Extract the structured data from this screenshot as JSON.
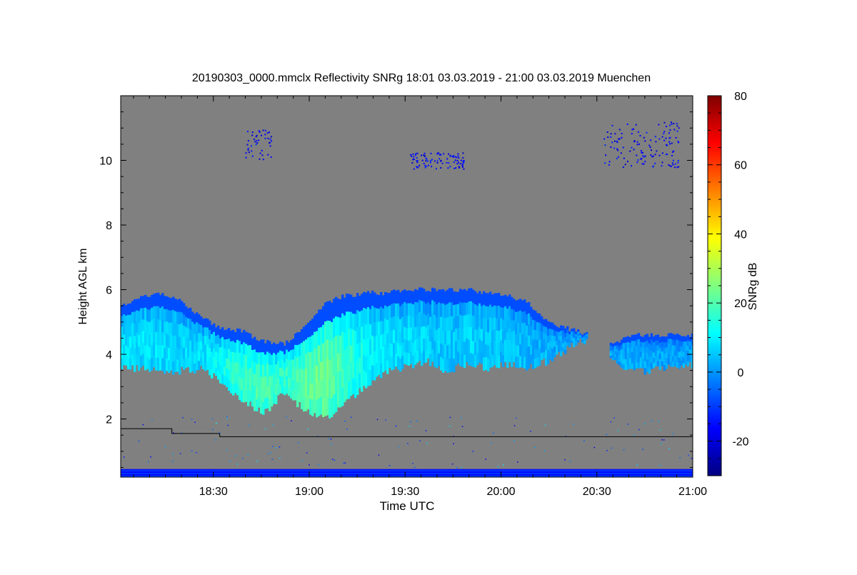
{
  "chart_data": {
    "type": "heatmap",
    "title": "20190303_0000.mmclx Reflectivity SNRg   18:01 03.03.2019 - 21:00 03.03.2019 Muenchen",
    "xlabel": "Time UTC",
    "ylabel": "Height AGL km",
    "colorbar_label": "SNRg dB",
    "xlim_minutes": [
      1081,
      1260
    ],
    "ylim_km": [
      0.2,
      12.0
    ],
    "x_ticks": [
      {
        "minutes": 1110,
        "label": "18:30"
      },
      {
        "minutes": 1140,
        "label": "19:00"
      },
      {
        "minutes": 1170,
        "label": "19:30"
      },
      {
        "minutes": 1200,
        "label": "20:00"
      },
      {
        "minutes": 1230,
        "label": "20:30"
      },
      {
        "minutes": 1260,
        "label": "21:00"
      }
    ],
    "y_ticks": [
      {
        "value": 2,
        "label": "2"
      },
      {
        "value": 4,
        "label": "4"
      },
      {
        "value": 6,
        "label": "6"
      },
      {
        "value": 8,
        "label": "8"
      },
      {
        "value": 10,
        "label": "10"
      }
    ],
    "colorbar_range_db": [
      -30,
      80
    ],
    "colorbar_ticks": [
      {
        "value": -20,
        "label": "-20"
      },
      {
        "value": 0,
        "label": "0"
      },
      {
        "value": 20,
        "label": "20"
      },
      {
        "value": 40,
        "label": "40"
      },
      {
        "value": 60,
        "label": "60"
      },
      {
        "value": 80,
        "label": "80"
      }
    ],
    "background_color": "#808080",
    "colormap": [
      "#00007f",
      "#0000ff",
      "#007fff",
      "#00ffff",
      "#7fff7f",
      "#ffff00",
      "#ff7f00",
      "#ff0000",
      "#7f0000"
    ],
    "echo_layers": [
      {
        "name": "main stratiform layer",
        "x_start": 1081,
        "x_end": 1227,
        "top_km": [
          5.5,
          5.8,
          5.9,
          5.6,
          5.1,
          4.8,
          4.7,
          4.4,
          4.3,
          4.8,
          5.6,
          5.8,
          5.9,
          5.9,
          6.0,
          6.0,
          6.0,
          6.0,
          5.9,
          5.8,
          5.6,
          5.0,
          4.8,
          4.6
        ],
        "base_km": [
          3.6,
          3.55,
          3.5,
          3.5,
          3.55,
          3.1,
          2.6,
          2.2,
          2.8,
          2.3,
          2.0,
          2.5,
          3.0,
          3.5,
          3.6,
          3.8,
          3.5,
          3.7,
          3.6,
          3.7,
          3.6,
          3.8,
          4.2,
          4.5
        ],
        "snr_db": [
          8,
          9,
          8,
          7,
          8,
          14,
          18,
          20,
          16,
          22,
          25,
          18,
          12,
          9,
          8,
          7,
          6,
          7,
          6,
          6,
          4,
          3,
          2,
          1
        ]
      },
      {
        "name": "eastern layer",
        "x_start": 1234,
        "x_end": 1260,
        "top_km": [
          4.3,
          4.6,
          4.6,
          4.6,
          4.6
        ],
        "base_km": [
          3.8,
          3.5,
          3.5,
          3.6,
          3.7
        ],
        "snr_db": [
          2,
          3,
          2,
          2,
          2
        ]
      }
    ],
    "cirrus_patches": [
      {
        "x_center": 1124,
        "height_km": 10.5,
        "x_width_min": 8,
        "height_spread_km": 0.9
      },
      {
        "x_center": 1180,
        "height_km": 10.0,
        "x_width_min": 17,
        "height_spread_km": 0.5
      },
      {
        "x_center": 1244,
        "height_km": 10.5,
        "x_width_min": 24,
        "height_spread_km": 1.4
      }
    ],
    "near_ground_band_km": [
      0.2,
      0.45
    ],
    "boundary_line": {
      "x_minutes": [
        1081,
        1097,
        1097,
        1112,
        1112,
        1260
      ],
      "height_km": [
        1.7,
        1.7,
        1.55,
        1.55,
        1.45,
        1.45
      ]
    }
  }
}
